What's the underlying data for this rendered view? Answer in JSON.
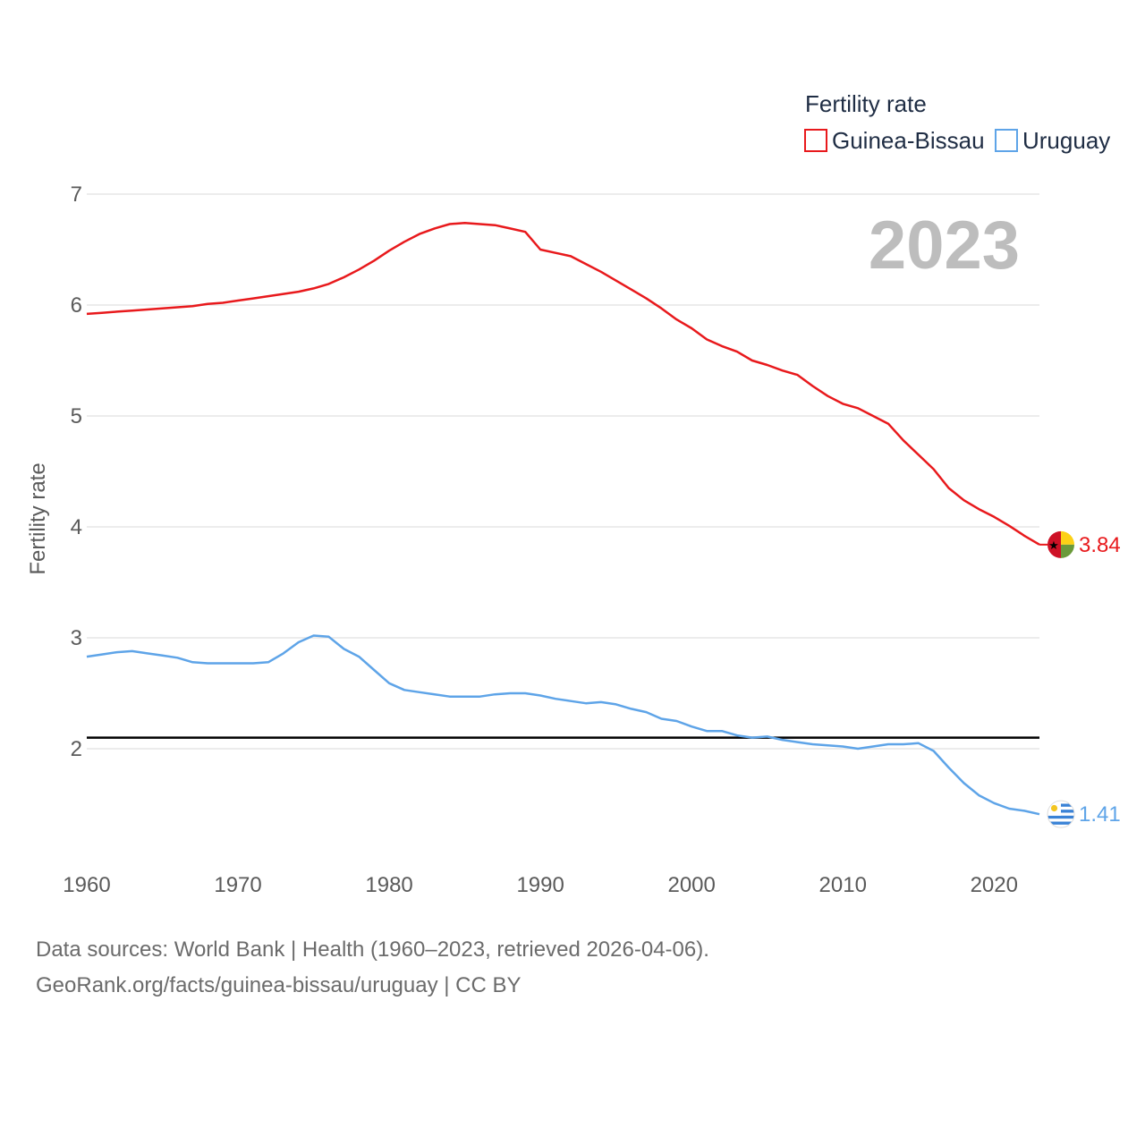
{
  "chart_data": {
    "type": "line",
    "legend_title": "Fertility rate",
    "ylabel": "Fertility rate",
    "year_display": "2023",
    "x": [
      1960,
      1961,
      1962,
      1963,
      1964,
      1965,
      1966,
      1967,
      1968,
      1969,
      1970,
      1971,
      1972,
      1973,
      1974,
      1975,
      1976,
      1977,
      1978,
      1979,
      1980,
      1981,
      1982,
      1983,
      1984,
      1985,
      1986,
      1987,
      1988,
      1989,
      1990,
      1991,
      1992,
      1993,
      1994,
      1995,
      1996,
      1997,
      1998,
      1999,
      2000,
      2001,
      2002,
      2003,
      2004,
      2005,
      2006,
      2007,
      2008,
      2009,
      2010,
      2011,
      2012,
      2013,
      2014,
      2015,
      2016,
      2017,
      2018,
      2019,
      2020,
      2021,
      2022,
      2023
    ],
    "series": [
      {
        "name": "Guinea-Bissau",
        "color": "#e8191c",
        "end_label": "3.84",
        "flag": "guinea-bissau-flag-icon",
        "values": [
          5.92,
          5.93,
          5.94,
          5.95,
          5.96,
          5.97,
          5.98,
          5.99,
          6.01,
          6.02,
          6.04,
          6.06,
          6.08,
          6.1,
          6.12,
          6.15,
          6.19,
          6.25,
          6.32,
          6.4,
          6.49,
          6.57,
          6.64,
          6.69,
          6.73,
          6.74,
          6.73,
          6.72,
          6.69,
          6.66,
          6.5,
          6.47,
          6.44,
          6.37,
          6.3,
          6.22,
          6.14,
          6.06,
          5.97,
          5.87,
          5.79,
          5.69,
          5.63,
          5.58,
          5.5,
          5.46,
          5.41,
          5.37,
          5.27,
          5.18,
          5.11,
          5.07,
          5.0,
          4.93,
          4.78,
          4.65,
          4.52,
          4.35,
          4.24,
          4.16,
          4.09,
          4.01,
          3.92,
          3.84
        ]
      },
      {
        "name": "Uruguay",
        "color": "#5ea4e8",
        "end_label": "1.41",
        "flag": "uruguay-flag-icon",
        "values": [
          2.83,
          2.85,
          2.87,
          2.88,
          2.86,
          2.84,
          2.82,
          2.78,
          2.77,
          2.77,
          2.77,
          2.77,
          2.78,
          2.86,
          2.96,
          3.02,
          3.01,
          2.9,
          2.83,
          2.71,
          2.59,
          2.53,
          2.51,
          2.49,
          2.47,
          2.47,
          2.47,
          2.49,
          2.5,
          2.5,
          2.48,
          2.45,
          2.43,
          2.41,
          2.42,
          2.4,
          2.36,
          2.33,
          2.27,
          2.25,
          2.2,
          2.16,
          2.16,
          2.12,
          2.1,
          2.11,
          2.08,
          2.06,
          2.04,
          2.03,
          2.02,
          2.0,
          2.02,
          2.04,
          2.04,
          2.05,
          1.98,
          1.83,
          1.69,
          1.58,
          1.51,
          1.46,
          1.44,
          1.41
        ]
      }
    ],
    "reference_line": {
      "value": 2.1,
      "color": "#000000"
    },
    "xlim": [
      1960,
      2023
    ],
    "ylim": [
      1.0,
      7.0
    ],
    "yticks": [
      7,
      6,
      5,
      4,
      3,
      2
    ],
    "xticks": [
      1960,
      1970,
      1980,
      1990,
      2000,
      2010,
      2020
    ],
    "grid": true,
    "legend_position": "top-right"
  },
  "footer": {
    "line1": "Data sources: World Bank | Health (1960–2023, retrieved 2026-04-06).",
    "line2": "GeoRank.org/facts/guinea-bissau/uruguay | CC BY"
  }
}
